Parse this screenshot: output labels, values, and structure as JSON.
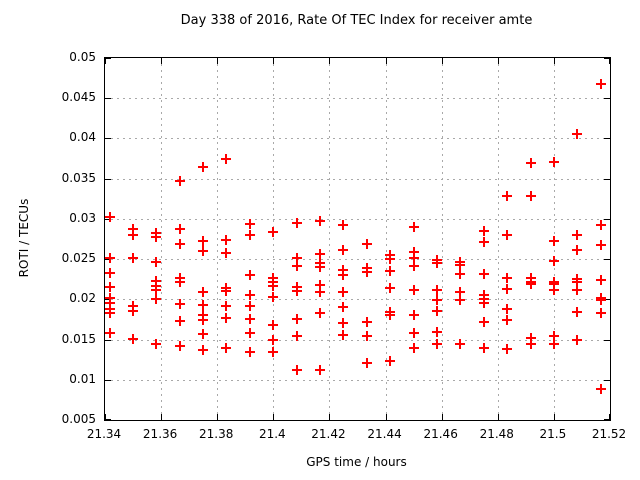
{
  "chart_data": {
    "type": "scatter",
    "title": "Day 338 of 2016, Rate Of TEC Index for receiver amte",
    "xlabel": "GPS time / hours",
    "ylabel": "ROTI / TECUs",
    "xlim": [
      21.34,
      21.52
    ],
    "ylim": [
      0.005,
      0.05
    ],
    "grid": true,
    "legend": false,
    "marker": {
      "shape": "plus-icon",
      "color": "#ff0000"
    },
    "grid_color": "#a9a9a9",
    "border_color": "#000000",
    "xticks": {
      "values": [
        21.34,
        21.36,
        21.38,
        21.4,
        21.42,
        21.44,
        21.46,
        21.48,
        21.5,
        21.52
      ],
      "labels": [
        "21.34",
        "21.36",
        "21.38",
        "21.4",
        "21.42",
        "21.44",
        "21.46",
        "21.48",
        "21.5",
        "21.52"
      ]
    },
    "yticks": {
      "values": [
        0.005,
        0.01,
        0.015,
        0.02,
        0.025,
        0.03,
        0.035,
        0.04,
        0.045,
        0.05
      ],
      "labels": [
        "0.005",
        "0.01",
        "0.015",
        "0.02",
        "0.025",
        "0.03",
        "0.035",
        "0.04",
        "0.045",
        "0.05"
      ]
    },
    "series": [
      {
        "name": "ROTI",
        "points": [
          [
            21.3417,
            0.0302
          ],
          [
            21.3417,
            0.0252
          ],
          [
            21.3417,
            0.0233
          ],
          [
            21.3417,
            0.0215
          ],
          [
            21.3417,
            0.0202
          ],
          [
            21.3417,
            0.0195
          ],
          [
            21.3417,
            0.0188
          ],
          [
            21.3417,
            0.0183
          ],
          [
            21.3417,
            0.0158
          ],
          [
            21.35,
            0.0287
          ],
          [
            21.35,
            0.028
          ],
          [
            21.35,
            0.0252
          ],
          [
            21.35,
            0.0192
          ],
          [
            21.35,
            0.0186
          ],
          [
            21.35,
            0.0151
          ],
          [
            21.3583,
            0.0283
          ],
          [
            21.3583,
            0.0277
          ],
          [
            21.3583,
            0.0246
          ],
          [
            21.3583,
            0.0223
          ],
          [
            21.3583,
            0.0217
          ],
          [
            21.3583,
            0.0211
          ],
          [
            21.3583,
            0.0201
          ],
          [
            21.3583,
            0.0145
          ],
          [
            21.3667,
            0.0347
          ],
          [
            21.3667,
            0.0287
          ],
          [
            21.3667,
            0.0269
          ],
          [
            21.3667,
            0.0226
          ],
          [
            21.3667,
            0.0221
          ],
          [
            21.3667,
            0.0194
          ],
          [
            21.3667,
            0.0173
          ],
          [
            21.3667,
            0.0142
          ],
          [
            21.375,
            0.0365
          ],
          [
            21.375,
            0.0273
          ],
          [
            21.375,
            0.026
          ],
          [
            21.375,
            0.0209
          ],
          [
            21.375,
            0.0193
          ],
          [
            21.375,
            0.018
          ],
          [
            21.375,
            0.0174
          ],
          [
            21.375,
            0.0157
          ],
          [
            21.375,
            0.0137
          ],
          [
            21.3833,
            0.0375
          ],
          [
            21.3833,
            0.0274
          ],
          [
            21.3833,
            0.0258
          ],
          [
            21.3833,
            0.0214
          ],
          [
            21.3833,
            0.021
          ],
          [
            21.3833,
            0.0192
          ],
          [
            21.3833,
            0.0177
          ],
          [
            21.3833,
            0.0139
          ],
          [
            21.3917,
            0.0294
          ],
          [
            21.3917,
            0.028
          ],
          [
            21.3917,
            0.023
          ],
          [
            21.3917,
            0.0206
          ],
          [
            21.3917,
            0.0192
          ],
          [
            21.3917,
            0.0176
          ],
          [
            21.3917,
            0.0158
          ],
          [
            21.3917,
            0.0134
          ],
          [
            21.4,
            0.0284
          ],
          [
            21.4,
            0.0227
          ],
          [
            21.4,
            0.0221
          ],
          [
            21.4,
            0.0216
          ],
          [
            21.4,
            0.0203
          ],
          [
            21.4,
            0.0168
          ],
          [
            21.4,
            0.015
          ],
          [
            21.4,
            0.0135
          ],
          [
            21.4083,
            0.0295
          ],
          [
            21.4083,
            0.0252
          ],
          [
            21.4083,
            0.0242
          ],
          [
            21.4083,
            0.0215
          ],
          [
            21.4083,
            0.021
          ],
          [
            21.4083,
            0.0175
          ],
          [
            21.4083,
            0.0155
          ],
          [
            21.4083,
            0.0112
          ],
          [
            21.4167,
            0.0297
          ],
          [
            21.4167,
            0.0256
          ],
          [
            21.4167,
            0.0245
          ],
          [
            21.4167,
            0.024
          ],
          [
            21.4167,
            0.0218
          ],
          [
            21.4167,
            0.0209
          ],
          [
            21.4167,
            0.0183
          ],
          [
            21.4167,
            0.0112
          ],
          [
            21.425,
            0.0293
          ],
          [
            21.425,
            0.0261
          ],
          [
            21.425,
            0.0236
          ],
          [
            21.425,
            0.023
          ],
          [
            21.425,
            0.0209
          ],
          [
            21.425,
            0.019
          ],
          [
            21.425,
            0.0171
          ],
          [
            21.425,
            0.0156
          ],
          [
            21.4333,
            0.0269
          ],
          [
            21.4333,
            0.0239
          ],
          [
            21.4333,
            0.0234
          ],
          [
            21.4333,
            0.0172
          ],
          [
            21.4333,
            0.0154
          ],
          [
            21.4333,
            0.0121
          ],
          [
            21.4417,
            0.0255
          ],
          [
            21.4417,
            0.025
          ],
          [
            21.4417,
            0.0235
          ],
          [
            21.4417,
            0.0214
          ],
          [
            21.4417,
            0.0184
          ],
          [
            21.4417,
            0.0181
          ],
          [
            21.4417,
            0.0123
          ],
          [
            21.45,
            0.029
          ],
          [
            21.45,
            0.0259
          ],
          [
            21.45,
            0.0252
          ],
          [
            21.45,
            0.0241
          ],
          [
            21.45,
            0.0211
          ],
          [
            21.45,
            0.018
          ],
          [
            21.45,
            0.0158
          ],
          [
            21.45,
            0.0139
          ],
          [
            21.4583,
            0.0249
          ],
          [
            21.4583,
            0.0245
          ],
          [
            21.4583,
            0.0211
          ],
          [
            21.4583,
            0.0199
          ],
          [
            21.4583,
            0.0185
          ],
          [
            21.4583,
            0.0159
          ],
          [
            21.4583,
            0.0144
          ],
          [
            21.4667,
            0.0247
          ],
          [
            21.4667,
            0.0243
          ],
          [
            21.4667,
            0.0232
          ],
          [
            21.4667,
            0.0209
          ],
          [
            21.4667,
            0.0199
          ],
          [
            21.4667,
            0.0145
          ],
          [
            21.475,
            0.0285
          ],
          [
            21.475,
            0.0271
          ],
          [
            21.475,
            0.0232
          ],
          [
            21.475,
            0.0205
          ],
          [
            21.475,
            0.0201
          ],
          [
            21.475,
            0.0196
          ],
          [
            21.475,
            0.0172
          ],
          [
            21.475,
            0.014
          ],
          [
            21.4833,
            0.0328
          ],
          [
            21.4833,
            0.028
          ],
          [
            21.4833,
            0.0227
          ],
          [
            21.4833,
            0.0213
          ],
          [
            21.4833,
            0.0188
          ],
          [
            21.4833,
            0.0174
          ],
          [
            21.4833,
            0.0138
          ],
          [
            21.4917,
            0.037
          ],
          [
            21.4917,
            0.0329
          ],
          [
            21.4917,
            0.0227
          ],
          [
            21.4917,
            0.0222
          ],
          [
            21.4917,
            0.0219
          ],
          [
            21.4917,
            0.0152
          ],
          [
            21.4917,
            0.0144
          ],
          [
            21.5,
            0.0371
          ],
          [
            21.5,
            0.0273
          ],
          [
            21.5,
            0.0248
          ],
          [
            21.5,
            0.0222
          ],
          [
            21.5,
            0.0219
          ],
          [
            21.5,
            0.0211
          ],
          [
            21.5,
            0.0155
          ],
          [
            21.5,
            0.0145
          ],
          [
            21.5083,
            0.0406
          ],
          [
            21.5083,
            0.028
          ],
          [
            21.5083,
            0.0261
          ],
          [
            21.5083,
            0.0225
          ],
          [
            21.5083,
            0.0222
          ],
          [
            21.5083,
            0.0211
          ],
          [
            21.5083,
            0.0184
          ],
          [
            21.5083,
            0.0149
          ],
          [
            21.5167,
            0.0468
          ],
          [
            21.5167,
            0.0293
          ],
          [
            21.5167,
            0.0267
          ],
          [
            21.5167,
            0.0224
          ],
          [
            21.5167,
            0.0202
          ],
          [
            21.5167,
            0.0199
          ],
          [
            21.5167,
            0.0183
          ],
          [
            21.5167,
            0.0089
          ]
        ]
      }
    ]
  }
}
